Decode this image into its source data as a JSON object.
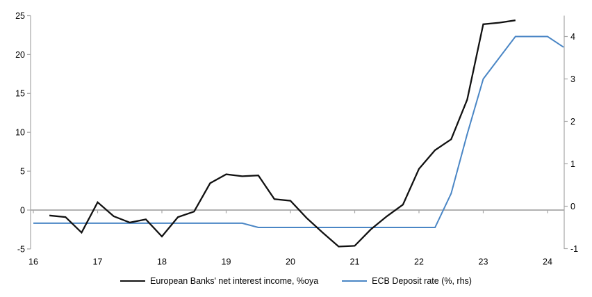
{
  "chart_data": {
    "type": "line",
    "title": "",
    "x_axis": {
      "ticks": [
        16,
        17,
        18,
        19,
        20,
        21,
        22,
        23,
        24
      ],
      "tick_labels": [
        "16",
        "17",
        "18",
        "19",
        "20",
        "21",
        "22",
        "23",
        "24"
      ]
    },
    "left_axis": {
      "ticks": [
        25,
        20,
        15,
        10,
        5,
        0,
        -5
      ],
      "min": -5,
      "max": 25
    },
    "right_axis": {
      "ticks": [
        4,
        3,
        2,
        1,
        0,
        -1
      ],
      "min": -1,
      "max": 4.5
    },
    "zero_line": 0,
    "grid": "zero-line-only",
    "legend_position": "bottom",
    "colors": {
      "nii_line": "#111111",
      "ecb_line": "#4a86c5",
      "axis_gray": "#a6a6a6"
    },
    "series": [
      {
        "name": "European Banks' net interest income, %oya",
        "axis": "left",
        "color": "#111111",
        "x_start": 16.25,
        "x_step": 0.25,
        "values": [
          -0.7,
          -0.9,
          -2.9,
          1.0,
          -0.8,
          -1.6,
          -1.2,
          -3.4,
          -0.9,
          -0.2,
          3.45,
          4.6,
          4.35,
          4.45,
          1.4,
          1.2,
          -1.0,
          -2.9,
          -4.7,
          -4.6,
          -2.5,
          -0.8,
          0.7,
          5.3,
          7.7,
          9.1,
          14.2,
          23.9,
          24.1,
          24.4
        ]
      },
      {
        "name": "ECB Deposit rate (%, rhs)",
        "axis": "right",
        "color": "#4a86c5",
        "x_start": 16.0,
        "x_step": 0.25,
        "values": [
          -0.4,
          -0.4,
          -0.4,
          -0.4,
          -0.4,
          -0.4,
          -0.4,
          -0.4,
          -0.4,
          -0.4,
          -0.4,
          -0.4,
          -0.4,
          -0.4,
          -0.5,
          -0.5,
          -0.5,
          -0.5,
          -0.5,
          -0.5,
          -0.5,
          -0.5,
          -0.5,
          -0.5,
          -0.5,
          -0.5,
          0.3,
          1.7,
          3.0,
          3.5,
          4.0,
          4.0,
          4.0,
          3.75
        ]
      }
    ]
  }
}
